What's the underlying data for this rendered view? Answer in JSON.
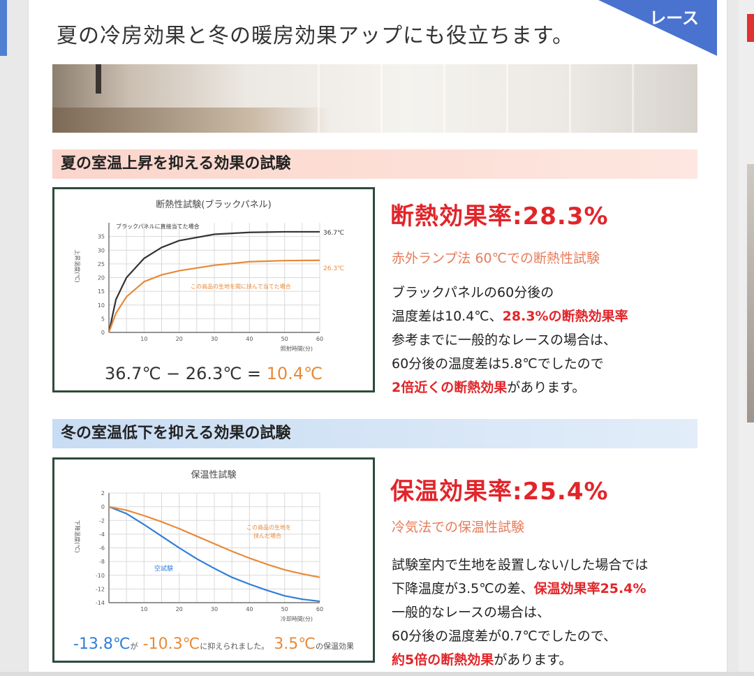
{
  "corner_label": "レース",
  "headline": "夏の冷房効果と冬の暖房効果アップにも役立ちます。",
  "summer": {
    "heading": "夏の室温上昇を抑える効果の試験",
    "chart_title": "断熱性試験(ブラックパネル)",
    "ylabel": "上昇温度(℃)",
    "xlabel": "照射時間(分)",
    "line_black_label": "ブラックパネルに直接当てた場合",
    "line_orange_label": "この商品の生地を間に挟んで当てた場合",
    "end_black": "36.7℃",
    "end_orange": "26.3℃",
    "formula_a": "36.7℃",
    "formula_op": "−",
    "formula_b": "26.3℃",
    "formula_eq": "=",
    "formula_result": "10.4℃",
    "rate": "断熱効果率:28.3%",
    "method": "赤外ランプ法 60℃での断熱性試験",
    "text": [
      {
        "plain": "ブラックパネルの60分後の",
        "red": ""
      },
      {
        "plain": "温度差は10.4℃、",
        "red": "28.3%の断熱効果率"
      },
      {
        "plain": "参考までに一般的なレースの場合は、",
        "red": ""
      },
      {
        "plain": "60分後の温度差は5.8℃でしたので",
        "red": ""
      }
    ],
    "last_red": "2倍近くの断熱効果",
    "last_plain": "があります。"
  },
  "winter": {
    "heading": "冬の室温低下を抑える効果の試験",
    "chart_title": "保温性試験",
    "ylabel": "下降温度(℃)",
    "xlabel": "冷却時間(分)",
    "line_blue_label": "空試験",
    "line_orange_label_1": "この商品の生地を",
    "line_orange_label_2": "挟んだ場合",
    "f_blue": "-13.8℃",
    "f_ga": "が",
    "f_orange": "-10.3℃",
    "f_mid": "に抑えられました。",
    "f_diff": "3.5℃",
    "f_end": "の保温効果",
    "rate": "保温効果率:25.4%",
    "method": "冷気法での保温性試験",
    "line1": "試験室内で生地を設置しない/した場合では",
    "line2_plain": "下降温度が3.5℃の差、",
    "line2_red": "保温効果率25.4%",
    "line3": "一般的なレースの場合は、",
    "line4": "60分後の温度差が0.7℃でしたので、",
    "last_red": "約5倍の断熱効果",
    "last_plain": "があります。"
  },
  "chart_data": [
    {
      "type": "line",
      "title": "断熱性試験(ブラックパネル)",
      "xlabel": "照射時間(分)",
      "ylabel": "上昇温度(℃)",
      "xlim": [
        0,
        60
      ],
      "ylim": [
        0,
        40
      ],
      "xticks": [
        10,
        20,
        30,
        40,
        50,
        60
      ],
      "yticks": [
        0,
        5,
        10,
        15,
        20,
        25,
        30,
        35
      ],
      "series": [
        {
          "name": "ブラックパネルに直接当てた場合",
          "color": "#333333",
          "x": [
            0,
            2,
            5,
            10,
            15,
            20,
            30,
            40,
            50,
            60
          ],
          "y": [
            0,
            12,
            20,
            27,
            31,
            33.5,
            35.8,
            36.5,
            36.7,
            36.7
          ]
        },
        {
          "name": "この商品の生地を間に挟んで当てた場合",
          "color": "#e88a38",
          "x": [
            0,
            2,
            5,
            10,
            15,
            20,
            30,
            40,
            50,
            60
          ],
          "y": [
            0,
            7,
            13,
            18.5,
            21,
            22.5,
            24.5,
            25.8,
            26.2,
            26.3
          ]
        }
      ]
    },
    {
      "type": "line",
      "title": "保温性試験",
      "xlabel": "冷却時間(分)",
      "ylabel": "下降温度(℃)",
      "xlim": [
        0,
        60
      ],
      "ylim": [
        -14,
        2
      ],
      "xticks": [
        10,
        20,
        30,
        40,
        50,
        60
      ],
      "yticks": [
        2,
        0,
        -2,
        -4,
        -6,
        -8,
        -10,
        -12,
        -14
      ],
      "series": [
        {
          "name": "空試験",
          "color": "#2f7ed8",
          "x": [
            0,
            5,
            10,
            15,
            20,
            25,
            30,
            35,
            40,
            45,
            50,
            55,
            60
          ],
          "y": [
            0,
            -1,
            -2.6,
            -4.3,
            -6,
            -7.6,
            -9,
            -10.3,
            -11.3,
            -12.2,
            -13,
            -13.5,
            -13.8
          ]
        },
        {
          "name": "この商品の生地を挟んだ場合",
          "color": "#e88a38",
          "x": [
            0,
            5,
            10,
            15,
            20,
            25,
            30,
            35,
            40,
            45,
            50,
            55,
            60
          ],
          "y": [
            0,
            -0.5,
            -1.3,
            -2.2,
            -3.2,
            -4.3,
            -5.4,
            -6.5,
            -7.5,
            -8.4,
            -9.2,
            -9.8,
            -10.3
          ]
        }
      ]
    }
  ]
}
